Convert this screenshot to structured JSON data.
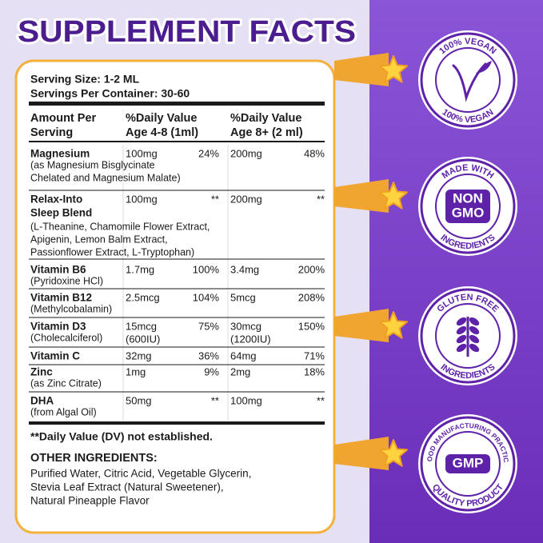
{
  "title": "SUPPLEMENT FACTS",
  "serving_size": "Serving Size: 1-2 ML",
  "servings_per_container": "Servings Per Container: 30-60",
  "header": [
    [
      "Amount Per",
      "Serving"
    ],
    [
      "%Daily Value",
      "Age 4-8 (1ml)"
    ],
    [
      "%Daily Value",
      "Age 8+ (2 ml)"
    ]
  ],
  "rows": [
    {
      "name": [
        "Magnesium"
      ],
      "sub": [
        "(as Magnesium Bisglycinate",
        "Chelated and Magnesium Malate)"
      ],
      "amount_1": [
        "100mg"
      ],
      "dv_1": "24%",
      "amount_2": [
        "200mg"
      ],
      "dv_2": "48%"
    },
    {
      "name": [
        "Relax-Into",
        "Sleep Blend"
      ],
      "sub": [
        "(L-Theanine, Chamomile Flower Extract,",
        "Apigenin, Lemon Balm Extract,",
        "Passionflower Extract, L-Tryptophan)"
      ],
      "amount_1": [
        "100mg"
      ],
      "dv_1": "**",
      "amount_2": [
        "200mg"
      ],
      "dv_2": "**"
    },
    {
      "name": [
        "Vitamin B6"
      ],
      "sub": [
        "(Pyridoxine HCl)"
      ],
      "amount_1": [
        "1.7mg"
      ],
      "dv_1": "100%",
      "amount_2": [
        "3.4mg"
      ],
      "dv_2": "200%"
    },
    {
      "name": [
        "Vitamin B12"
      ],
      "sub": [
        "(Methylcobalamin)"
      ],
      "amount_1": [
        "2.5mcg"
      ],
      "dv_1": "104%",
      "amount_2": [
        "5mcg"
      ],
      "dv_2": "208%"
    },
    {
      "name": [
        "Vitamin D3"
      ],
      "sub": [
        "(Cholecalciferol)"
      ],
      "amount_1": [
        "15mcg",
        "(600IU)"
      ],
      "dv_1": "75%",
      "amount_2": [
        "30mcg",
        "(1200IU)"
      ],
      "dv_2": "150%"
    },
    {
      "name": [
        "Vitamin C"
      ],
      "sub": [],
      "amount_1": [
        "32mg"
      ],
      "dv_1": "36%",
      "amount_2": [
        "64mg"
      ],
      "dv_2": "71%"
    },
    {
      "name": [
        "Zinc"
      ],
      "sub": [
        "(as Zinc Citrate)"
      ],
      "amount_1": [
        "1mg"
      ],
      "dv_1": "9%",
      "amount_2": [
        "2mg"
      ],
      "dv_2": "18%"
    },
    {
      "name": [
        "DHA"
      ],
      "sub": [
        "(from Algal Oil)"
      ],
      "amount_1": [
        "50mg"
      ],
      "dv_1": "**",
      "amount_2": [
        "100mg"
      ],
      "dv_2": "**"
    }
  ],
  "footnote": "**Daily Value (DV) not established.",
  "other_ingredients": {
    "title": "OTHER INGREDIENTS:",
    "lines": [
      "Purified Water, Citric Acid, Vegetable Glycerin,",
      "Stevia Leaf Extract (Natural Sweetener),",
      "Natural Pineapple Flavor"
    ]
  },
  "badges": [
    {
      "top": "100% VEGAN",
      "bottom": "100% VEGAN",
      "center": []
    },
    {
      "top": "MADE WITH",
      "bottom": "INGREDIENTS",
      "center": [
        "NON",
        "GMO"
      ]
    },
    {
      "top": "GLUTEN FREE",
      "bottom": "INGREDIENTS",
      "center": []
    },
    {
      "top": "GOOD MANUFACTURING PRACTICE",
      "bottom": "QUALITY PRODUCT",
      "center": [
        "GMP"
      ]
    }
  ]
}
